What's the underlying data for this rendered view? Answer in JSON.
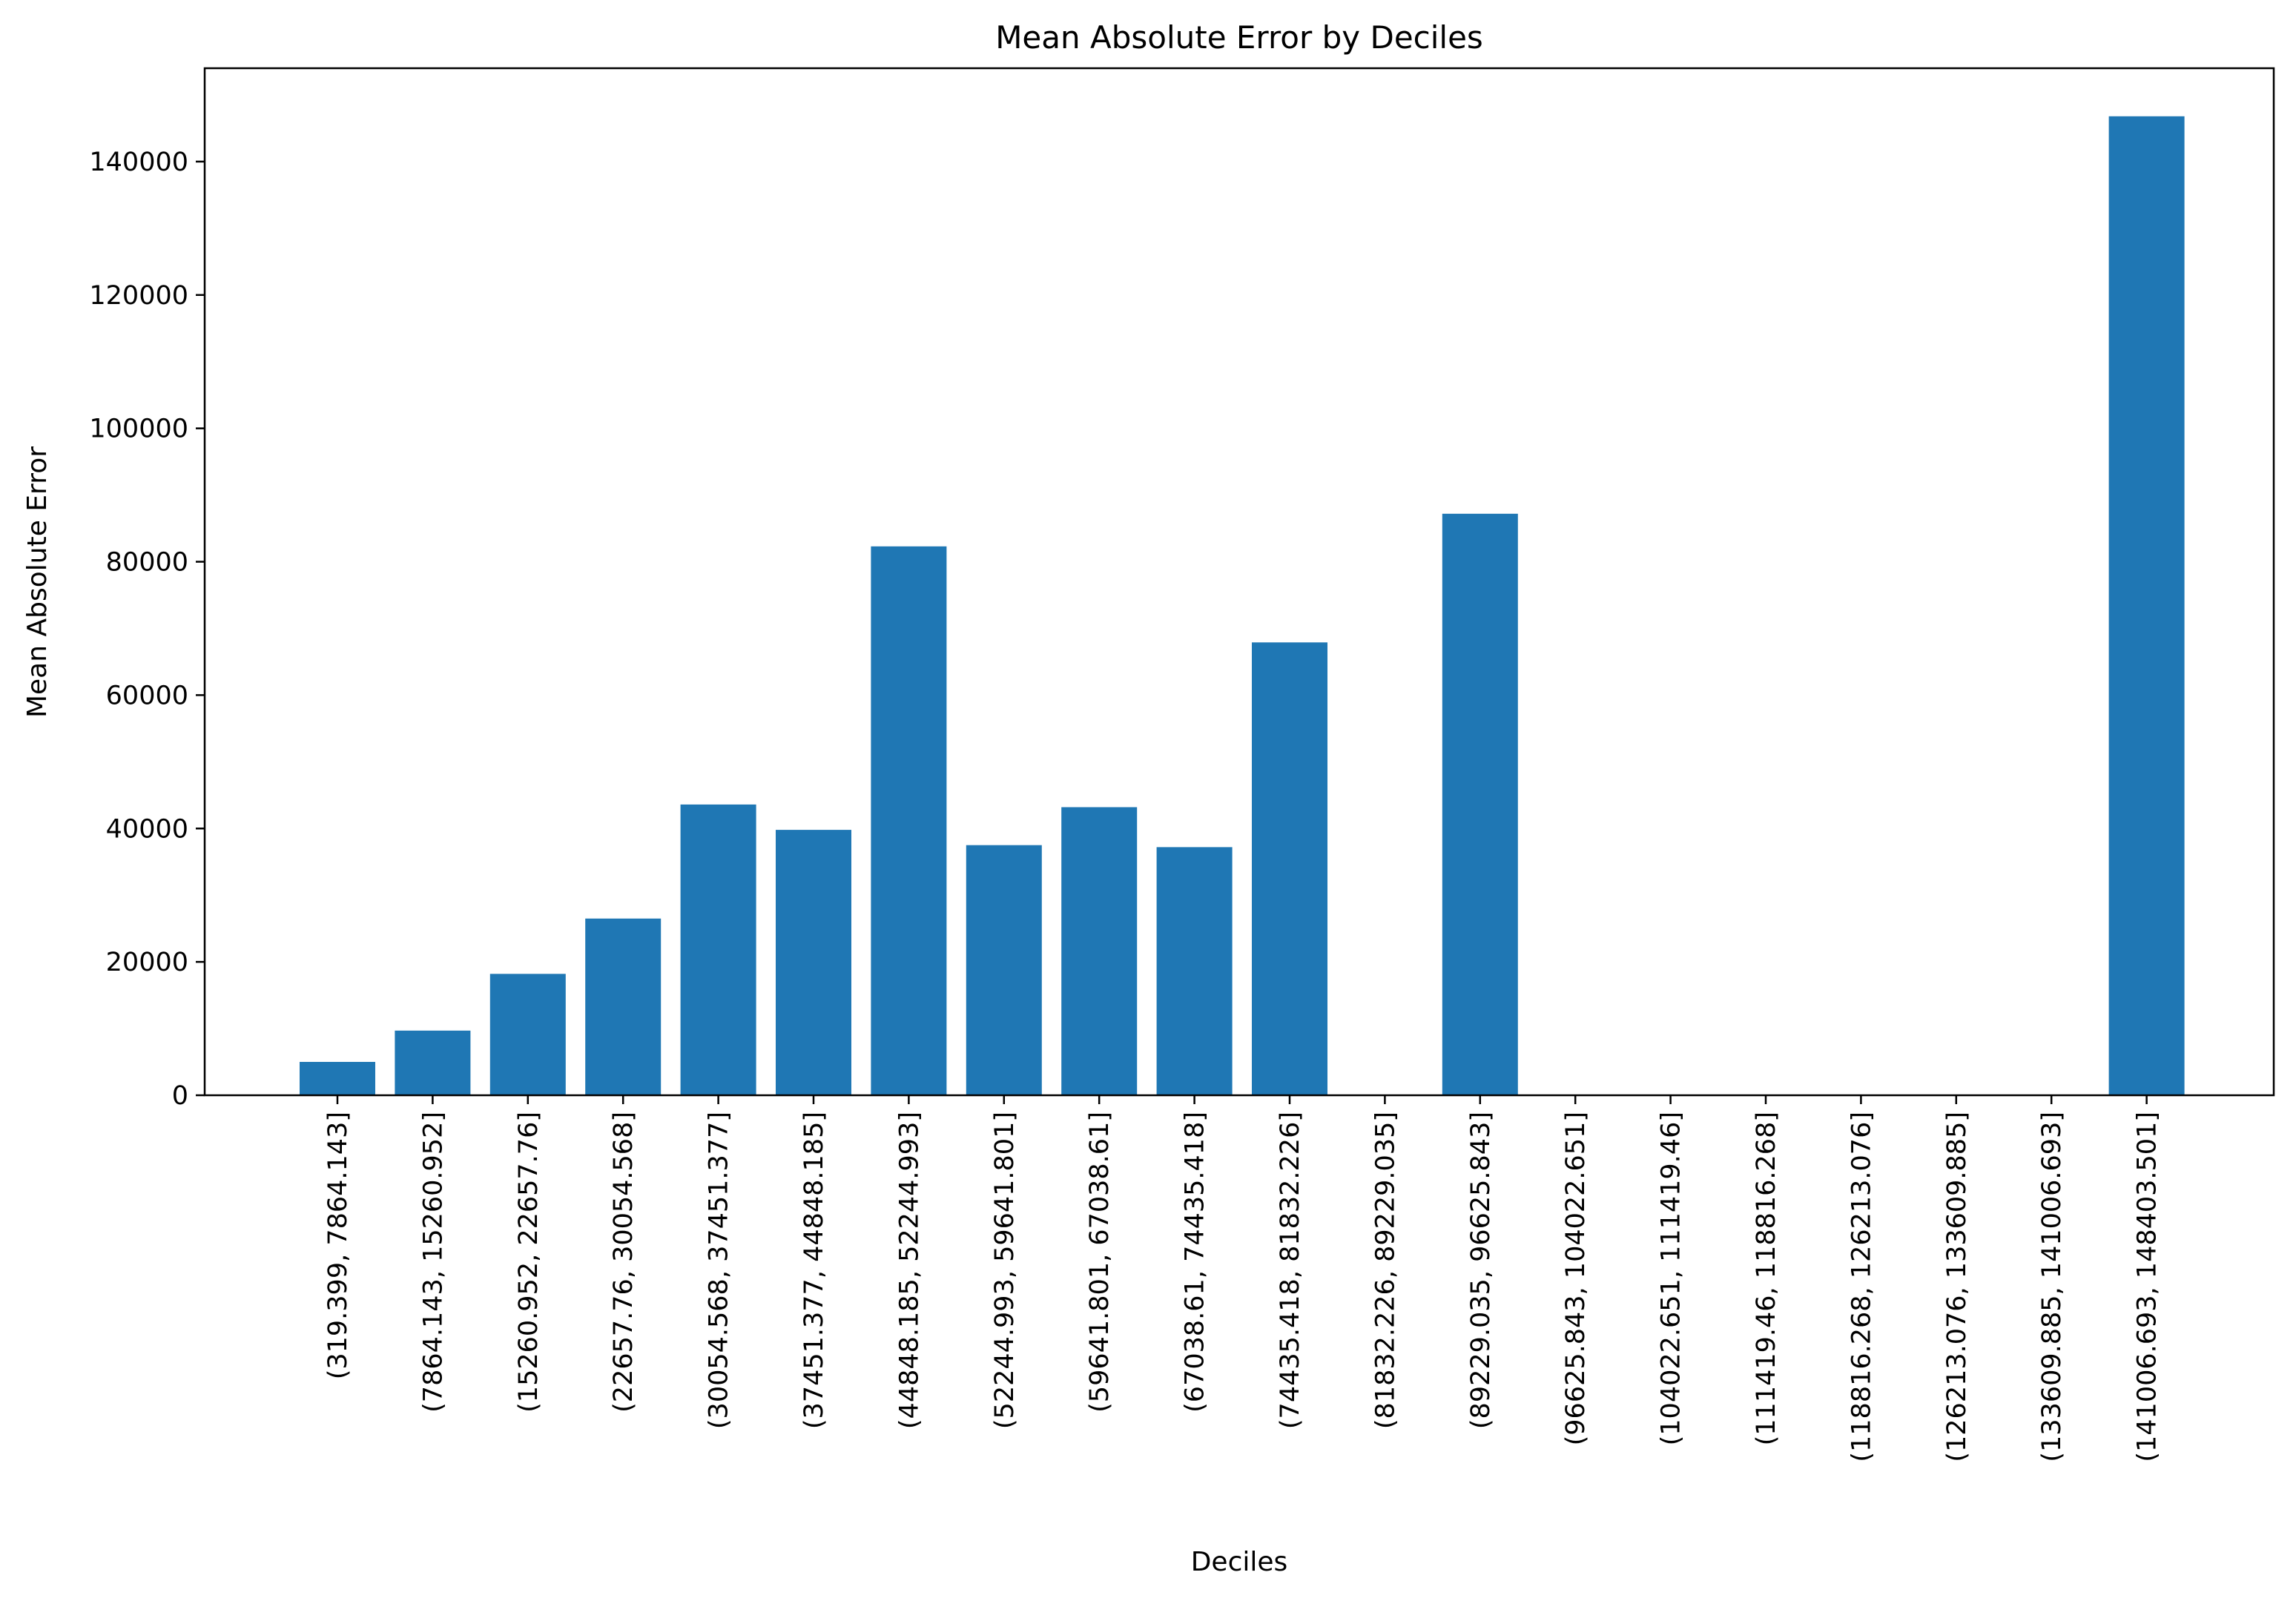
{
  "chart_data": {
    "type": "bar",
    "title": "Mean Absolute Error by Deciles",
    "xlabel": "Deciles",
    "ylabel": "Mean Absolute Error",
    "ylim": [
      0,
      154000
    ],
    "yticks": [
      0,
      20000,
      40000,
      60000,
      80000,
      100000,
      120000,
      140000
    ],
    "ytick_labels": [
      "0",
      "20000",
      "40000",
      "60000",
      "80000",
      "100000",
      "120000",
      "140000"
    ],
    "grid": false,
    "legend": "none",
    "bar_color": "#1f77b4",
    "categories": [
      "(319.399, 7864.143]",
      "(7864.143, 15260.952]",
      "(15260.952, 22657.76]",
      "(22657.76, 30054.568]",
      "(30054.568, 37451.377]",
      "(37451.377, 44848.185]",
      "(44848.185, 52244.993]",
      "(52244.993, 59641.801]",
      "(59641.801, 67038.61]",
      "(67038.61, 74435.418]",
      "(74435.418, 81832.226]",
      "(81832.226, 89229.035]",
      "(89229.035, 96625.843]",
      "(96625.843, 104022.651]",
      "(104022.651, 111419.46]",
      "(111419.46, 118816.268]",
      "(118816.268, 126213.076]",
      "(126213.076, 133609.885]",
      "(133609.885, 141006.693]",
      "(141006.693, 148403.501]"
    ],
    "values": [
      5000,
      9700,
      18200,
      26500,
      43600,
      39800,
      82300,
      37500,
      43200,
      37200,
      67900,
      0,
      87200,
      0,
      0,
      0,
      0,
      0,
      0,
      146800
    ]
  }
}
